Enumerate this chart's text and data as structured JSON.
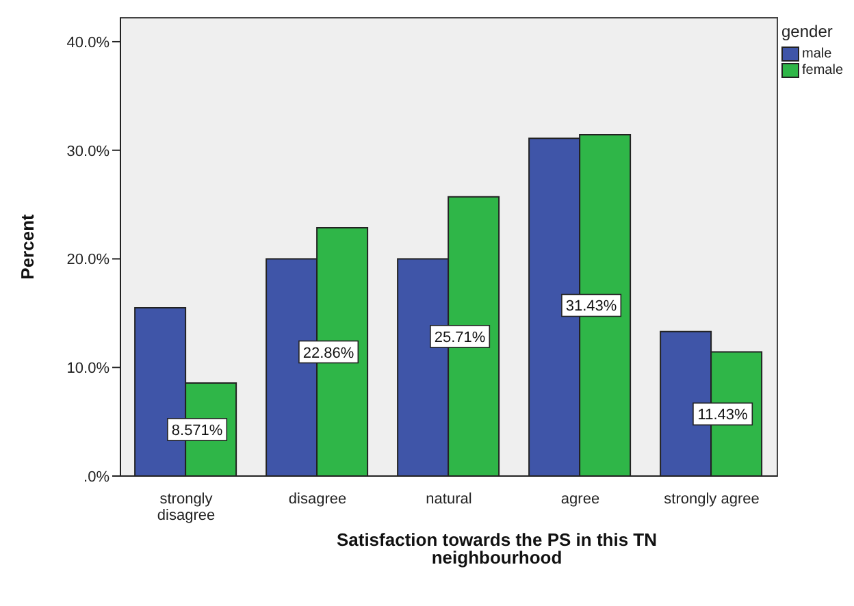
{
  "chart_data": {
    "type": "bar",
    "xlabel": "Satisfaction towards the PS in this TN neighbourhood",
    "ylabel": "Percent",
    "legend_title": "gender",
    "categories": [
      "strongly disagree",
      "disagree",
      "natural",
      "agree",
      "strongly agree"
    ],
    "series": [
      {
        "name": "male",
        "color": "#3f55a8",
        "values": [
          15.5,
          20.0,
          20.0,
          31.1,
          13.3
        ]
      },
      {
        "name": "female",
        "color": "#2fb648",
        "values": [
          8.571,
          22.86,
          25.71,
          31.43,
          11.43
        ],
        "value_labels": [
          "8.571%",
          "22.86%",
          "25.71%",
          "31.43%",
          "11.43%"
        ]
      }
    ],
    "ylim": [
      0,
      42.2
    ],
    "yticks": [
      {
        "value": 0,
        "label": ".0%"
      },
      {
        "value": 10,
        "label": "10.0%"
      },
      {
        "value": 20,
        "label": "20.0%"
      },
      {
        "value": 30,
        "label": "30.0%"
      },
      {
        "value": 40,
        "label": "40.0%"
      }
    ],
    "grid": false,
    "legend": "top right"
  }
}
